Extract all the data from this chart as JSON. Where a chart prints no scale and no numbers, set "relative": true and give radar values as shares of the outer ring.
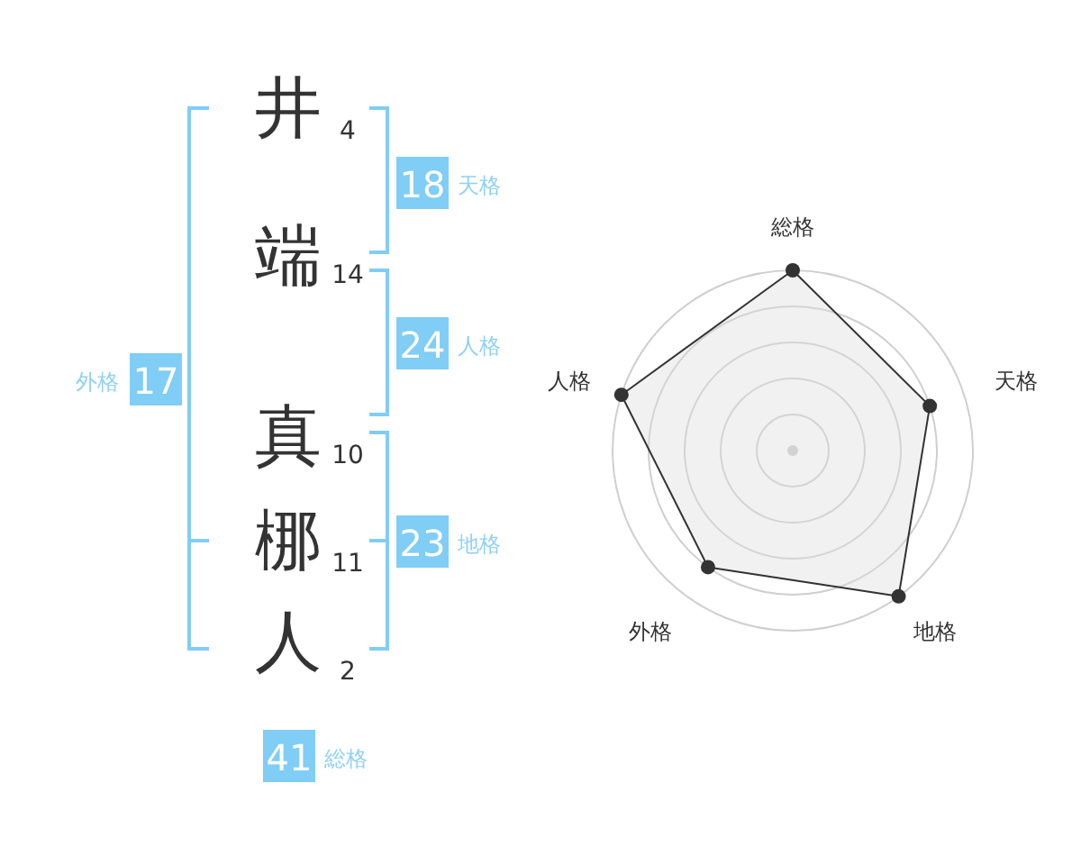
{
  "chart_data": [
    {
      "type": "other",
      "categories": [
        "井",
        "端",
        "真",
        "梛",
        "人"
      ],
      "values": [
        4,
        14,
        10,
        11,
        2
      ],
      "data_labels": true
    },
    {
      "type": "other",
      "categories": [
        "天格",
        "人格",
        "地格",
        "外格",
        "総格"
      ],
      "values": [
        18,
        24,
        23,
        17,
        41
      ],
      "data_labels": true
    },
    {
      "type": "radar",
      "categories": [
        "総格",
        "天格",
        "地格",
        "外格",
        "人格"
      ],
      "relative": true,
      "grid": true,
      "marker": "circle",
      "series": [
        {
          "color": "#333333",
          "values": [
            1,
            0.8,
            1,
            0.8,
            1
          ]
        }
      ]
    }
  ]
}
